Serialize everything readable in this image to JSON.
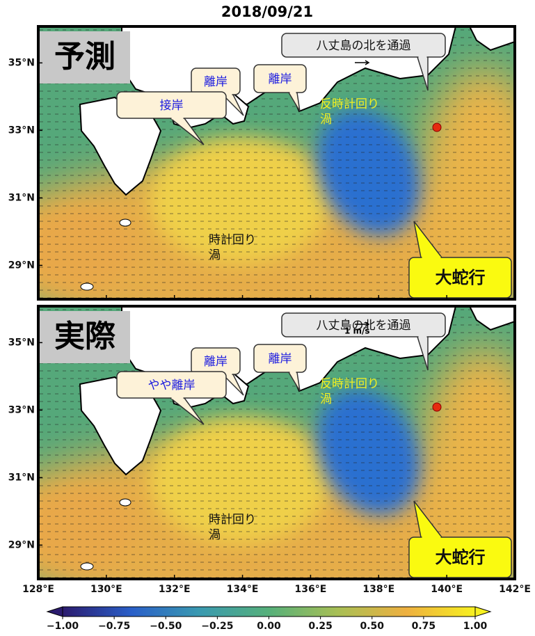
{
  "title": "2018/09/21",
  "panels": [
    {
      "label": "予測",
      "callouts": [
        "八丈島の北を通過",
        "離岸",
        "離岸",
        "接岸",
        "大蛇行"
      ],
      "eddies": [
        [
          "反時計回り",
          "渦"
        ],
        [
          "時計回り",
          "渦"
        ]
      ]
    },
    {
      "label": "実際",
      "callouts": [
        "八丈島の北を通過",
        "離岸",
        "離岸",
        "やや離岸",
        "大蛇行"
      ],
      "eddies": [
        [
          "反時計回り",
          "渦"
        ],
        [
          "時計回り",
          "渦"
        ]
      ],
      "scale_label": "1 m/s"
    }
  ],
  "lat_ticks": [
    {
      "value": 35,
      "label": "35°N"
    },
    {
      "value": 33,
      "label": "33°N"
    },
    {
      "value": 31,
      "label": "31°N"
    },
    {
      "value": 29,
      "label": "29°N"
    }
  ],
  "lon_ticks": [
    {
      "value": 128,
      "label": "128°E"
    },
    {
      "value": 130,
      "label": "130°E"
    },
    {
      "value": 132,
      "label": "132°E"
    },
    {
      "value": 134,
      "label": "134°E"
    },
    {
      "value": 136,
      "label": "136°E"
    },
    {
      "value": 138,
      "label": "138°E"
    },
    {
      "value": 140,
      "label": "140°E"
    },
    {
      "value": 142,
      "label": "142°E"
    }
  ],
  "colorbar": {
    "range": [
      -1,
      1
    ],
    "colors": [
      "#2b1b6e",
      "#2a5fc8",
      "#3a9ab0",
      "#56b07a",
      "#a8bf55",
      "#eeb040",
      "#f7f020"
    ],
    "ticks": [
      {
        "value": -1,
        "label": "−1.00"
      },
      {
        "value": -0.75,
        "label": "−0.75"
      },
      {
        "value": -0.5,
        "label": "−0.50"
      },
      {
        "value": -0.25,
        "label": "−0.25"
      },
      {
        "value": 0,
        "label": "0.00"
      },
      0.25,
      {
        "value": 0.5,
        "label": "0.50"
      },
      0.75,
      {
        "value": 1,
        "label": "1.00"
      }
    ]
  }
}
